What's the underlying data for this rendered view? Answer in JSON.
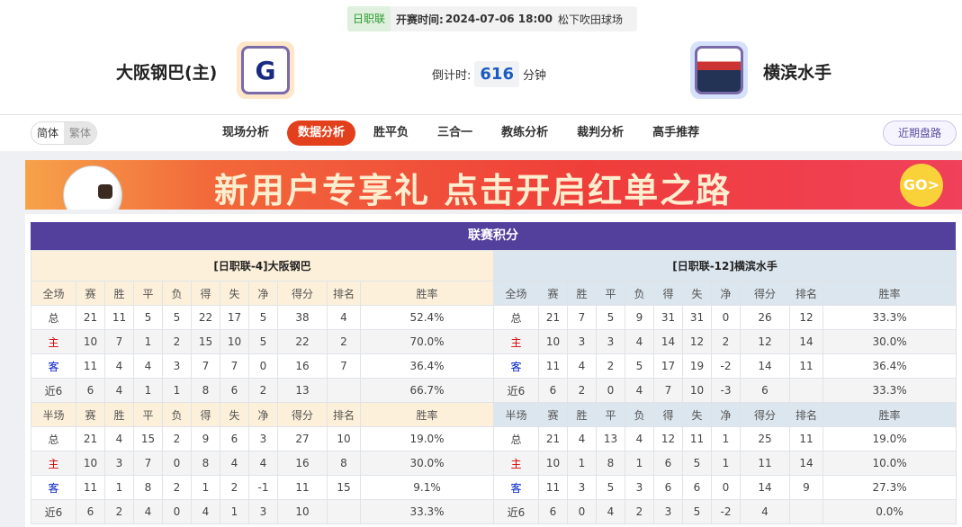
{
  "match": {
    "league": "日职联",
    "time_label": "开赛时间:",
    "time": "2024-07-06 18:00",
    "venue": "松下吹田球场",
    "home": "大阪钢巴(主)",
    "away": "横滨水手",
    "countdown_label": "倒计时:",
    "countdown": "616",
    "countdown_unit": "分钟"
  },
  "nav": {
    "lang": [
      "简体",
      "繁体"
    ],
    "tabs": [
      "现场分析",
      "数据分析",
      "胜平负",
      "三合一",
      "教练分析",
      "裁判分析",
      "高手推荐"
    ],
    "active_tab": "数据分析",
    "recent": "近期盘路"
  },
  "banner": {
    "text": "新用户专享礼  点击开启红单之路",
    "go": "GO>"
  },
  "standings": {
    "title": "联赛积分",
    "columns_full": [
      "全场",
      "赛",
      "胜",
      "平",
      "负",
      "得",
      "失",
      "净",
      "得分",
      "排名",
      "胜率"
    ],
    "columns_half": [
      "半场",
      "赛",
      "胜",
      "平",
      "负",
      "得",
      "失",
      "净",
      "得分",
      "排名",
      "胜率"
    ],
    "home": {
      "header": "[日职联-4]大阪钢巴",
      "full": [
        [
          "总",
          "21",
          "11",
          "5",
          "5",
          "22",
          "17",
          "5",
          "38",
          "4",
          "52.4%"
        ],
        [
          "主",
          "10",
          "7",
          "1",
          "2",
          "15",
          "10",
          "5",
          "22",
          "2",
          "70.0%"
        ],
        [
          "客",
          "11",
          "4",
          "4",
          "3",
          "7",
          "7",
          "0",
          "16",
          "7",
          "36.4%"
        ],
        [
          "近6",
          "6",
          "4",
          "1",
          "1",
          "8",
          "6",
          "2",
          "13",
          "",
          "66.7%"
        ]
      ],
      "half": [
        [
          "总",
          "21",
          "4",
          "15",
          "2",
          "9",
          "6",
          "3",
          "27",
          "10",
          "19.0%"
        ],
        [
          "主",
          "10",
          "3",
          "7",
          "0",
          "8",
          "4",
          "4",
          "16",
          "8",
          "30.0%"
        ],
        [
          "客",
          "11",
          "1",
          "8",
          "2",
          "1",
          "2",
          "-1",
          "11",
          "15",
          "9.1%"
        ],
        [
          "近6",
          "6",
          "2",
          "4",
          "0",
          "4",
          "1",
          "3",
          "10",
          "",
          "33.3%"
        ]
      ]
    },
    "away": {
      "header": "[日职联-12]横滨水手",
      "full": [
        [
          "总",
          "21",
          "7",
          "5",
          "9",
          "31",
          "31",
          "0",
          "26",
          "12",
          "33.3%"
        ],
        [
          "主",
          "10",
          "3",
          "3",
          "4",
          "14",
          "12",
          "2",
          "12",
          "14",
          "30.0%"
        ],
        [
          "客",
          "11",
          "4",
          "2",
          "5",
          "17",
          "19",
          "-2",
          "14",
          "11",
          "36.4%"
        ],
        [
          "近6",
          "6",
          "2",
          "0",
          "4",
          "7",
          "10",
          "-3",
          "6",
          "",
          "33.3%"
        ]
      ],
      "half": [
        [
          "总",
          "21",
          "4",
          "13",
          "4",
          "12",
          "11",
          "1",
          "25",
          "11",
          "19.0%"
        ],
        [
          "主",
          "10",
          "1",
          "8",
          "1",
          "6",
          "5",
          "1",
          "11",
          "14",
          "10.0%"
        ],
        [
          "客",
          "11",
          "3",
          "5",
          "3",
          "6",
          "6",
          "0",
          "14",
          "9",
          "27.3%"
        ],
        [
          "近6",
          "6",
          "0",
          "4",
          "2",
          "3",
          "5",
          "-2",
          "4",
          "",
          "0.0%"
        ]
      ]
    }
  },
  "colors": {
    "accent": "#e2401c",
    "title_bar": "#533f9c",
    "home_label": "#dd0000",
    "away_label": "#0020c8"
  }
}
